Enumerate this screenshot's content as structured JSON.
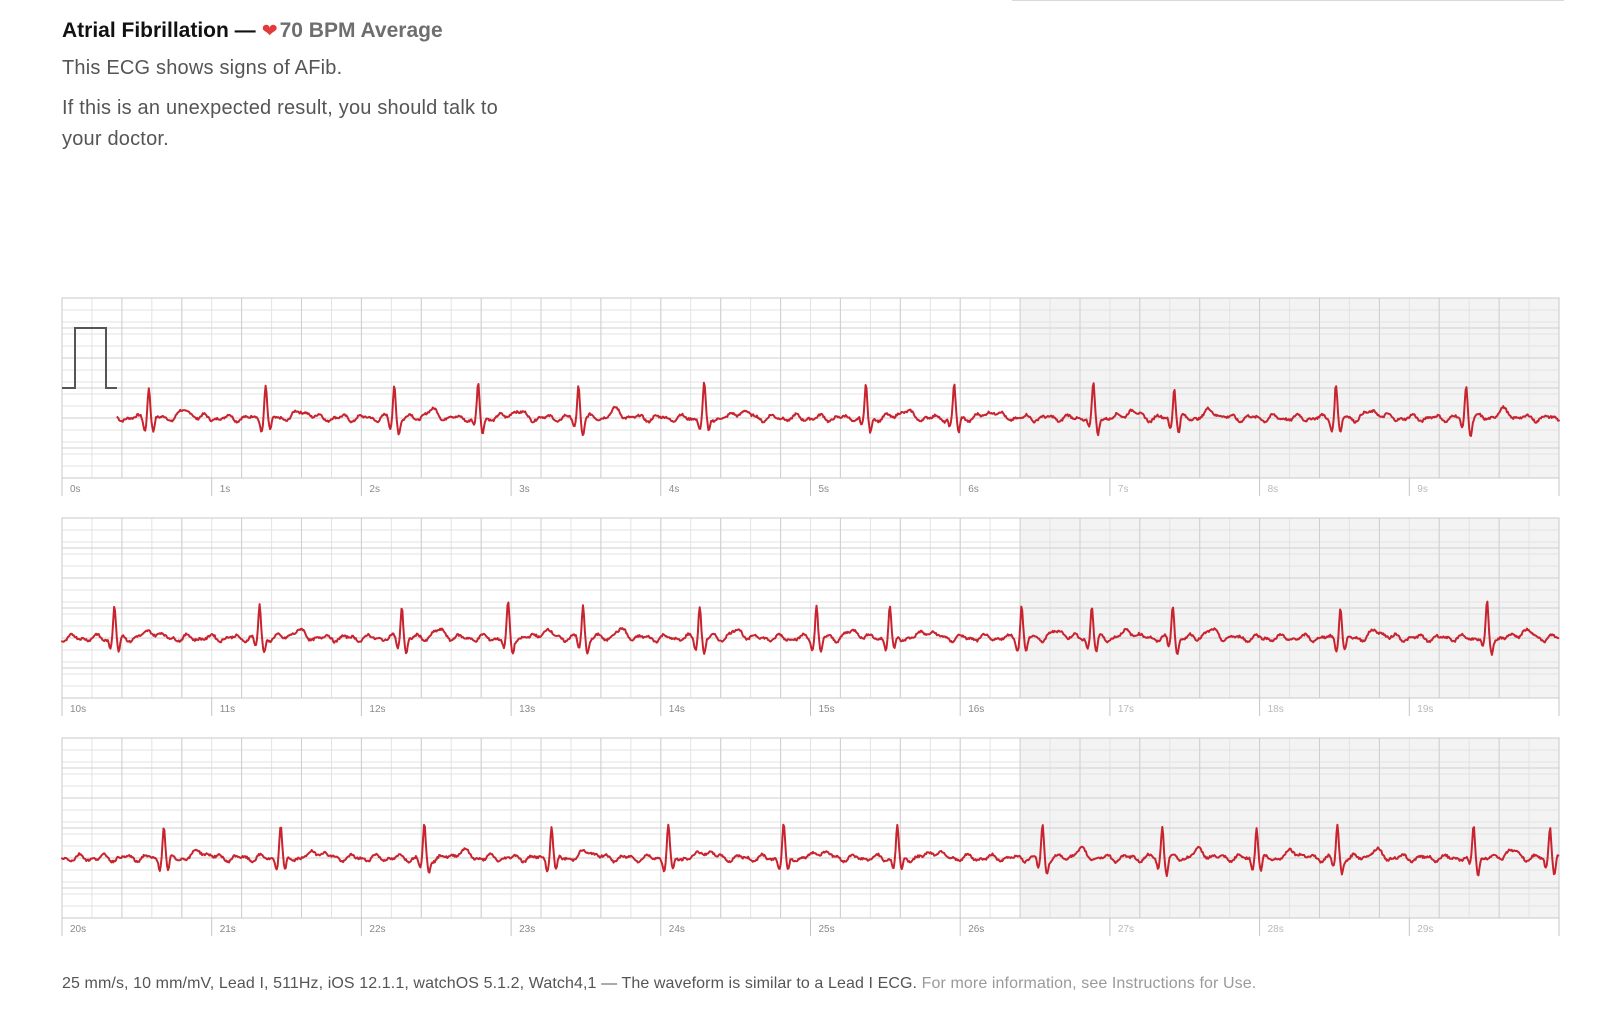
{
  "header": {
    "title": "Atrial Fibrillation —",
    "heart_icon": "heart-icon",
    "average": "70 BPM Average",
    "description": "This ECG shows signs of AFib.",
    "advice": "If this is an unexpected result, you should talk to your doctor."
  },
  "chart_data": {
    "type": "line",
    "title": "",
    "xlabel": "",
    "ylabel": "",
    "xunit": "s",
    "grid": true,
    "line_color": "#c8242f",
    "rows": [
      {
        "start": 0,
        "end": 10,
        "ticks": [
          "0s",
          "1s",
          "2s",
          "3s",
          "4s",
          "5s",
          "6s",
          "7s",
          "8s",
          "9s"
        ],
        "beats": [
          0.58,
          1.36,
          2.22,
          2.78,
          3.45,
          4.29,
          5.37,
          5.96,
          6.89,
          7.43,
          8.51,
          9.38
        ]
      },
      {
        "start": 10,
        "end": 20,
        "ticks": [
          "10s",
          "11s",
          "12s",
          "13s",
          "14s",
          "15s",
          "16s",
          "17s",
          "18s",
          "19s"
        ],
        "beats": [
          10.35,
          11.32,
          12.27,
          12.98,
          13.48,
          14.26,
          15.04,
          15.53,
          16.41,
          16.88,
          17.42,
          18.54,
          19.52
        ]
      },
      {
        "start": 20,
        "end": 30,
        "ticks": [
          "20s",
          "21s",
          "22s",
          "23s",
          "24s",
          "25s",
          "26s",
          "27s",
          "28s",
          "29s"
        ],
        "beats": [
          20.68,
          21.46,
          22.42,
          23.27,
          24.05,
          24.82,
          25.58,
          26.55,
          27.35,
          27.98,
          28.52,
          29.43,
          29.94
        ]
      }
    ]
  },
  "footer": {
    "specs": "25 mm/s, 10 mm/mV, Lead I, 511Hz, iOS 12.1.1, watchOS 5.1.2, Watch4,1 — The waveform is similar to a Lead I ECG.",
    "more_info": "For more information, see Instructions for Use."
  }
}
